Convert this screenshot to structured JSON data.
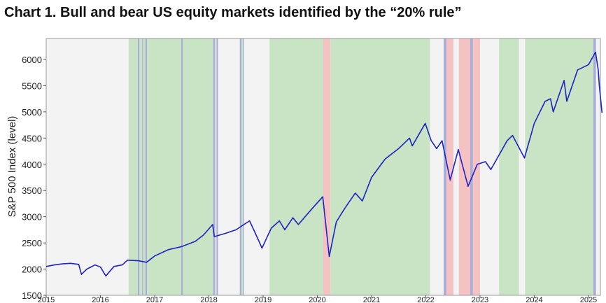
{
  "chart_data": {
    "type": "line",
    "title": "Chart 1. Bull and bear US equity markets identified by the “20% rule”",
    "y_label": "S&P 500 Index (level)",
    "color": "#1c22c4",
    "xlim": [
      2015,
      2025.22
    ],
    "xticks": [
      2015,
      2016,
      2017,
      2018,
      2019,
      2020,
      2021,
      2022,
      2023,
      2024,
      2025
    ],
    "ylim": [
      1500,
      6400
    ],
    "yticks": [
      1500,
      2000,
      2500,
      3000,
      3500,
      4000,
      4500,
      5000,
      5500,
      6000
    ],
    "x": [
      2015.0,
      2015.15,
      2015.3,
      2015.45,
      2015.6,
      2015.65,
      2015.75,
      2015.9,
      2016.0,
      2016.1,
      2016.25,
      2016.4,
      2016.5,
      2016.7,
      2016.85,
      2017.0,
      2017.25,
      2017.5,
      2017.75,
      2017.9,
      2018.07,
      2018.1,
      2018.3,
      2018.5,
      2018.75,
      2018.85,
      2018.98,
      2019.15,
      2019.3,
      2019.4,
      2019.55,
      2019.65,
      2019.9,
      2020.1,
      2020.22,
      2020.35,
      2020.5,
      2020.7,
      2020.83,
      2021.0,
      2021.25,
      2021.5,
      2021.7,
      2021.75,
      2021.99,
      2022.1,
      2022.2,
      2022.3,
      2022.45,
      2022.6,
      2022.78,
      2022.95,
      2023.1,
      2023.2,
      2023.5,
      2023.6,
      2023.82,
      2024.0,
      2024.2,
      2024.3,
      2024.35,
      2024.55,
      2024.6,
      2024.8,
      2025.0,
      2025.13,
      2025.18,
      2025.2,
      2025.25
    ],
    "values": [
      2050,
      2080,
      2100,
      2110,
      2090,
      1900,
      2000,
      2080,
      2040,
      1870,
      2050,
      2080,
      2170,
      2160,
      2130,
      2250,
      2370,
      2430,
      2530,
      2650,
      2850,
      2620,
      2680,
      2750,
      2920,
      2700,
      2400,
      2780,
      2920,
      2750,
      2980,
      2850,
      3150,
      3380,
      2240,
      2900,
      3150,
      3450,
      3300,
      3750,
      4100,
      4300,
      4500,
      4350,
      4780,
      4450,
      4300,
      4450,
      3700,
      4280,
      3580,
      4000,
      4050,
      3900,
      4450,
      4550,
      4120,
      4780,
      5200,
      5250,
      5000,
      5600,
      5200,
      5800,
      5900,
      6140,
      5800,
      5500,
      4980
    ],
    "bands": [
      {
        "start": 2015.0,
        "end": 2016.52,
        "color": "#f3f3f3"
      },
      {
        "start": 2016.52,
        "end": 2016.69,
        "color": "#c9e4c5"
      },
      {
        "start": 2016.69,
        "end": 2016.72,
        "color": "#a9aed6"
      },
      {
        "start": 2016.72,
        "end": 2016.77,
        "color": "#c9e4c5"
      },
      {
        "start": 2016.77,
        "end": 2016.79,
        "color": "#a9aed6"
      },
      {
        "start": 2016.79,
        "end": 2016.83,
        "color": "#c9e4c5"
      },
      {
        "start": 2016.83,
        "end": 2016.86,
        "color": "#a9aed6"
      },
      {
        "start": 2016.86,
        "end": 2017.49,
        "color": "#c9e4c5"
      },
      {
        "start": 2017.49,
        "end": 2017.52,
        "color": "#a9aed6"
      },
      {
        "start": 2017.52,
        "end": 2018.08,
        "color": "#c9e4c5"
      },
      {
        "start": 2018.08,
        "end": 2018.12,
        "color": "#a9aed6"
      },
      {
        "start": 2018.12,
        "end": 2018.14,
        "color": "#f3f3f3"
      },
      {
        "start": 2018.14,
        "end": 2018.17,
        "color": "#a9aed6"
      },
      {
        "start": 2018.17,
        "end": 2018.57,
        "color": "#f3f3f3"
      },
      {
        "start": 2018.57,
        "end": 2018.6,
        "color": "#a9aed6"
      },
      {
        "start": 2018.6,
        "end": 2018.63,
        "color": "#c9e4c5"
      },
      {
        "start": 2018.63,
        "end": 2018.65,
        "color": "#a9aed6"
      },
      {
        "start": 2018.65,
        "end": 2019.12,
        "color": "#f3f3f3"
      },
      {
        "start": 2019.12,
        "end": 2020.11,
        "color": "#c9e4c5"
      },
      {
        "start": 2020.11,
        "end": 2020.24,
        "color": "#f5c2c4"
      },
      {
        "start": 2020.24,
        "end": 2022.08,
        "color": "#c9e4c5"
      },
      {
        "start": 2022.08,
        "end": 2022.33,
        "color": "#f3f3f3"
      },
      {
        "start": 2022.33,
        "end": 2022.38,
        "color": "#a9aed6"
      },
      {
        "start": 2022.38,
        "end": 2022.51,
        "color": "#f5c2c4"
      },
      {
        "start": 2022.51,
        "end": 2022.61,
        "color": "#f3f3f3"
      },
      {
        "start": 2022.61,
        "end": 2022.82,
        "color": "#f5c2c4"
      },
      {
        "start": 2022.82,
        "end": 2022.87,
        "color": "#a9aed6"
      },
      {
        "start": 2022.87,
        "end": 2023.0,
        "color": "#f5c2c4"
      },
      {
        "start": 2023.0,
        "end": 2023.35,
        "color": "#f3f3f3"
      },
      {
        "start": 2023.35,
        "end": 2023.72,
        "color": "#c9e4c5"
      },
      {
        "start": 2023.72,
        "end": 2023.83,
        "color": "#f3f3f3"
      },
      {
        "start": 2023.83,
        "end": 2025.09,
        "color": "#c9e4c5"
      },
      {
        "start": 2025.09,
        "end": 2025.14,
        "color": "#a9aed6"
      },
      {
        "start": 2025.14,
        "end": 2025.22,
        "color": "#f3f3f3"
      }
    ]
  }
}
